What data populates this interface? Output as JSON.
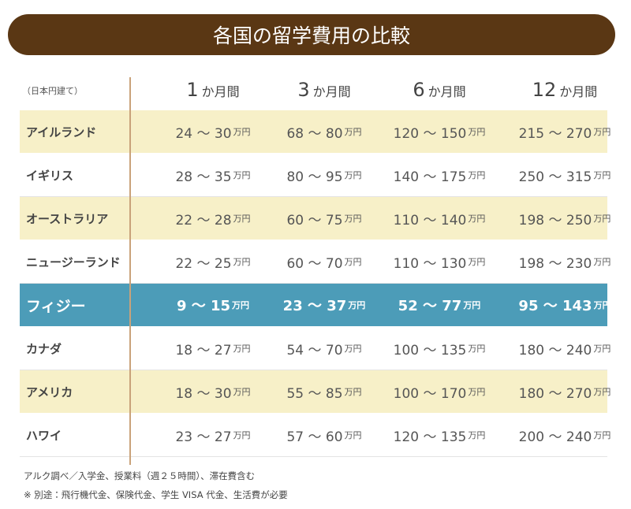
{
  "title": "各国の留学費用の比較",
  "table": {
    "unit_note": "（日本円建て）",
    "columns": [
      [
        "1",
        "か月間"
      ],
      [
        "3",
        "か月間"
      ],
      [
        "6",
        "か月間"
      ],
      [
        "12",
        "か月間"
      ]
    ],
    "rows": [
      {
        "country": "アイルランド",
        "cells": [
          [
            "24 ～ 30",
            "万円"
          ],
          [
            "68 ～ 80",
            "万円"
          ],
          [
            "120 ～ 150",
            "万円"
          ],
          [
            "215 ～ 270",
            "万円"
          ]
        ]
      },
      {
        "country": "イギリス",
        "cells": [
          [
            "28 ～ 35",
            "万円"
          ],
          [
            "80 ～ 95",
            "万円"
          ],
          [
            "140 ～ 175",
            "万円"
          ],
          [
            "250 ～ 315",
            "万円"
          ]
        ]
      },
      {
        "country": "オーストラリア",
        "cells": [
          [
            "22 ～ 28",
            "万円"
          ],
          [
            "60 ～ 75",
            "万円"
          ],
          [
            "110 ～ 140",
            "万円"
          ],
          [
            "198 ～ 250",
            "万円"
          ]
        ]
      },
      {
        "country": "ニュージーランド",
        "cells": [
          [
            "22 ～ 25",
            "万円"
          ],
          [
            "60 ～ 70",
            "万円"
          ],
          [
            "110 ～ 130",
            "万円"
          ],
          [
            "198 ～ 230",
            "万円"
          ]
        ]
      },
      {
        "country": "フィジー",
        "cells": [
          [
            "9 ～ 15",
            "万円"
          ],
          [
            "23 ～ 37",
            "万円"
          ],
          [
            "52 ～ 77",
            "万円"
          ],
          [
            "95 ～ 143",
            "万円"
          ]
        ]
      },
      {
        "country": "カナダ",
        "cells": [
          [
            "18 ～ 27",
            "万円"
          ],
          [
            "54 ～ 70",
            "万円"
          ],
          [
            "100 ～ 135",
            "万円"
          ],
          [
            "180 ～ 240",
            "万円"
          ]
        ]
      },
      {
        "country": "アメリカ",
        "cells": [
          [
            "18 ～ 30",
            "万円"
          ],
          [
            "55 ～ 85",
            "万円"
          ],
          [
            "100 ～ 170",
            "万円"
          ],
          [
            "180 ～ 270",
            "万円"
          ]
        ]
      },
      {
        "country": "ハワイ",
        "cells": [
          [
            "23 ～ 27",
            "万円"
          ],
          [
            "57 ～ 60",
            "万円"
          ],
          [
            "120 ～ 135",
            "万円"
          ],
          [
            "200 ～ 240",
            "万円"
          ]
        ]
      }
    ]
  },
  "notes": [
    "アルク調べ／入学金、授業料（週２５時間）、滞在費含む",
    "※ 別途：飛行機代金、保険代金、学生 VISA 代金、生活費が必要"
  ]
}
